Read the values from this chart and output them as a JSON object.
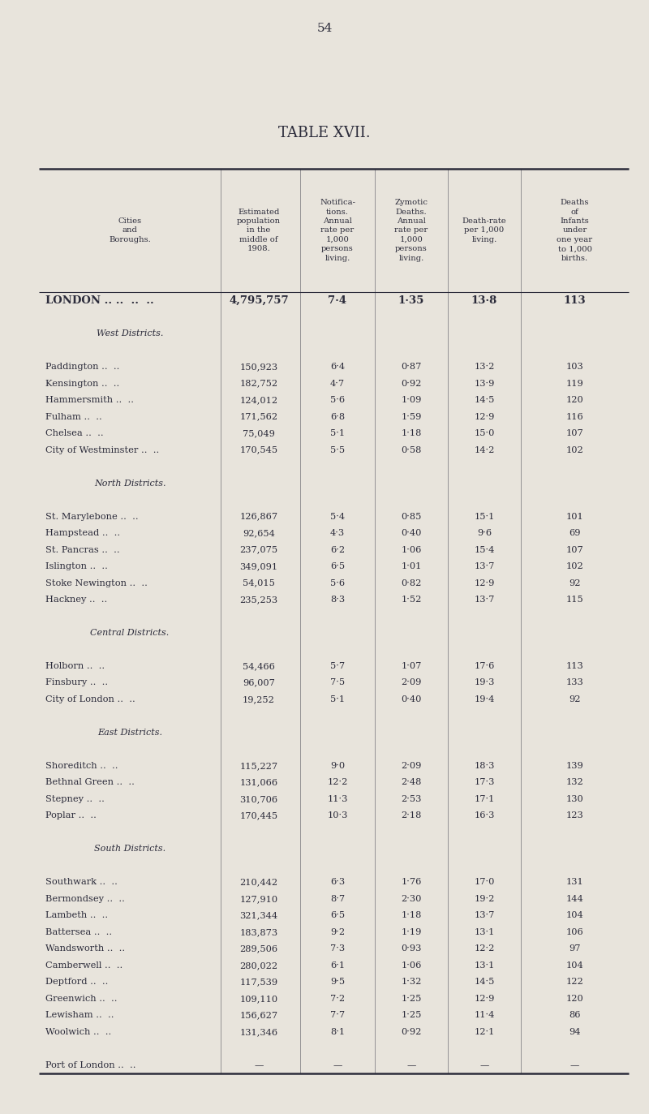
{
  "page_number": "54",
  "title": "TABLE XVII.",
  "bg_color": "#e8e4dc",
  "text_color": "#2b2b3a",
  "rows": [
    {
      "name": "LONDON ..",
      "pop": "4,795,757",
      "notif": "7·4",
      "zymotic": "1·35",
      "death": "13·8",
      "infant": "113",
      "bold": true,
      "section": null,
      "empty": false
    },
    {
      "name": "",
      "pop": "",
      "notif": "",
      "zymotic": "",
      "death": "",
      "infant": "",
      "bold": false,
      "section": null,
      "empty": true
    },
    {
      "name": "West Districts.",
      "pop": "",
      "notif": "",
      "zymotic": "",
      "death": "",
      "infant": "",
      "bold": false,
      "section": "West Districts.",
      "empty": false
    },
    {
      "name": "",
      "pop": "",
      "notif": "",
      "zymotic": "",
      "death": "",
      "infant": "",
      "bold": false,
      "section": null,
      "empty": true
    },
    {
      "name": "Paddington",
      "pop": "150,923",
      "notif": "6·4",
      "zymotic": "0·87",
      "death": "13·2",
      "infant": "103",
      "bold": false,
      "section": null,
      "empty": false
    },
    {
      "name": "Kensington",
      "pop": "182,752",
      "notif": "4·7",
      "zymotic": "0·92",
      "death": "13·9",
      "infant": "119",
      "bold": false,
      "section": null,
      "empty": false
    },
    {
      "name": "Hammersmith",
      "pop": "124,012",
      "notif": "5·6",
      "zymotic": "1·09",
      "death": "14·5",
      "infant": "120",
      "bold": false,
      "section": null,
      "empty": false
    },
    {
      "name": "Fulham",
      "pop": "171,562",
      "notif": "6·8",
      "zymotic": "1·59",
      "death": "12·9",
      "infant": "116",
      "bold": false,
      "section": null,
      "empty": false
    },
    {
      "name": "Chelsea",
      "pop": "75,049",
      "notif": "5·1",
      "zymotic": "1·18",
      "death": "15·0",
      "infant": "107",
      "bold": false,
      "section": null,
      "empty": false
    },
    {
      "name": "City of Westminster",
      "pop": "170,545",
      "notif": "5·5",
      "zymotic": "0·58",
      "death": "14·2",
      "infant": "102",
      "bold": false,
      "section": null,
      "empty": false
    },
    {
      "name": "",
      "pop": "",
      "notif": "",
      "zymotic": "",
      "death": "",
      "infant": "",
      "bold": false,
      "section": null,
      "empty": true
    },
    {
      "name": "North Districts.",
      "pop": "",
      "notif": "",
      "zymotic": "",
      "death": "",
      "infant": "",
      "bold": false,
      "section": "North Districts.",
      "empty": false
    },
    {
      "name": "",
      "pop": "",
      "notif": "",
      "zymotic": "",
      "death": "",
      "infant": "",
      "bold": false,
      "section": null,
      "empty": true
    },
    {
      "name": "St. Marylebone",
      "pop": "126,867",
      "notif": "5·4",
      "zymotic": "0·85",
      "death": "15·1",
      "infant": "101",
      "bold": false,
      "section": null,
      "empty": false
    },
    {
      "name": "Hampstead",
      "pop": "92,654",
      "notif": "4·3",
      "zymotic": "0·40",
      "death": "9·6",
      "infant": "69",
      "bold": false,
      "section": null,
      "empty": false
    },
    {
      "name": "St. Pancras",
      "pop": "237,075",
      "notif": "6·2",
      "zymotic": "1·06",
      "death": "15·4",
      "infant": "107",
      "bold": false,
      "section": null,
      "empty": false
    },
    {
      "name": "Islington",
      "pop": "349,091",
      "notif": "6·5",
      "zymotic": "1·01",
      "death": "13·7",
      "infant": "102",
      "bold": false,
      "section": null,
      "empty": false
    },
    {
      "name": "Stoke Newington ..",
      "pop": "54,015",
      "notif": "5·6",
      "zymotic": "0·82",
      "death": "12·9",
      "infant": "92",
      "bold": false,
      "section": null,
      "empty": false
    },
    {
      "name": "Hackney",
      "pop": "235,253",
      "notif": "8·3",
      "zymotic": "1·52",
      "death": "13·7",
      "infant": "115",
      "bold": false,
      "section": null,
      "empty": false
    },
    {
      "name": "",
      "pop": "",
      "notif": "",
      "zymotic": "",
      "death": "",
      "infant": "",
      "bold": false,
      "section": null,
      "empty": true
    },
    {
      "name": "Central Districts.",
      "pop": "",
      "notif": "",
      "zymotic": "",
      "death": "",
      "infant": "",
      "bold": false,
      "section": "Central Districts.",
      "empty": false
    },
    {
      "name": "",
      "pop": "",
      "notif": "",
      "zymotic": "",
      "death": "",
      "infant": "",
      "bold": false,
      "section": null,
      "empty": true
    },
    {
      "name": "Holborn",
      "pop": "54,466",
      "notif": "5·7",
      "zymotic": "1·07",
      "death": "17·6",
      "infant": "113",
      "bold": false,
      "section": null,
      "empty": false
    },
    {
      "name": "Finsbury",
      "pop": "96,007",
      "notif": "7·5",
      "zymotic": "2·09",
      "death": "19·3",
      "infant": "133",
      "bold": false,
      "section": null,
      "empty": false
    },
    {
      "name": "City of London",
      "pop": "19,252",
      "notif": "5·1",
      "zymotic": "0·40",
      "death": "19·4",
      "infant": "92",
      "bold": false,
      "section": null,
      "empty": false
    },
    {
      "name": "",
      "pop": "",
      "notif": "",
      "zymotic": "",
      "death": "",
      "infant": "",
      "bold": false,
      "section": null,
      "empty": true
    },
    {
      "name": "East Districts.",
      "pop": "",
      "notif": "",
      "zymotic": "",
      "death": "",
      "infant": "",
      "bold": false,
      "section": "East Districts.",
      "empty": false
    },
    {
      "name": "",
      "pop": "",
      "notif": "",
      "zymotic": "",
      "death": "",
      "infant": "",
      "bold": false,
      "section": null,
      "empty": true
    },
    {
      "name": "Shoreditch",
      "pop": "115,227",
      "notif": "9·0",
      "zymotic": "2·09",
      "death": "18·3",
      "infant": "139",
      "bold": false,
      "section": null,
      "empty": false
    },
    {
      "name": "Bethnal Green",
      "pop": "131,066",
      "notif": "12·2",
      "zymotic": "2·48",
      "death": "17·3",
      "infant": "132",
      "bold": false,
      "section": null,
      "empty": false
    },
    {
      "name": "Stepney",
      "pop": "310,706",
      "notif": "11·3",
      "zymotic": "2·53",
      "death": "17·1",
      "infant": "130",
      "bold": false,
      "section": null,
      "empty": false
    },
    {
      "name": "Poplar",
      "pop": "170,445",
      "notif": "10·3",
      "zymotic": "2·18",
      "death": "16·3",
      "infant": "123",
      "bold": false,
      "section": null,
      "empty": false
    },
    {
      "name": "",
      "pop": "",
      "notif": "",
      "zymotic": "",
      "death": "",
      "infant": "",
      "bold": false,
      "section": null,
      "empty": true
    },
    {
      "name": "South Districts.",
      "pop": "",
      "notif": "",
      "zymotic": "",
      "death": "",
      "infant": "",
      "bold": false,
      "section": "South Districts.",
      "empty": false
    },
    {
      "name": "",
      "pop": "",
      "notif": "",
      "zymotic": "",
      "death": "",
      "infant": "",
      "bold": false,
      "section": null,
      "empty": true
    },
    {
      "name": "Southwark",
      "pop": "210,442",
      "notif": "6·3",
      "zymotic": "1·76",
      "death": "17·0",
      "infant": "131",
      "bold": false,
      "section": null,
      "empty": false
    },
    {
      "name": "Bermondsey",
      "pop": "127,910",
      "notif": "8·7",
      "zymotic": "2·30",
      "death": "19·2",
      "infant": "144",
      "bold": false,
      "section": null,
      "empty": false
    },
    {
      "name": "Lambeth",
      "pop": "321,344",
      "notif": "6·5",
      "zymotic": "1·18",
      "death": "13·7",
      "infant": "104",
      "bold": false,
      "section": null,
      "empty": false
    },
    {
      "name": "Battersea",
      "pop": "183,873",
      "notif": "9·2",
      "zymotic": "1·19",
      "death": "13·1",
      "infant": "106",
      "bold": false,
      "section": null,
      "empty": false
    },
    {
      "name": "Wandsworth",
      "pop": "289,506",
      "notif": "7·3",
      "zymotic": "0·93",
      "death": "12·2",
      "infant": "97",
      "bold": false,
      "section": null,
      "empty": false
    },
    {
      "name": "Camberwell",
      "pop": "280,022",
      "notif": "6·1",
      "zymotic": "1·06",
      "death": "13·1",
      "infant": "104",
      "bold": false,
      "section": null,
      "empty": false
    },
    {
      "name": "Deptford",
      "pop": "117,539",
      "notif": "9·5",
      "zymotic": "1·32",
      "death": "14·5",
      "infant": "122",
      "bold": false,
      "section": null,
      "empty": false
    },
    {
      "name": "Greenwich",
      "pop": "109,110",
      "notif": "7·2",
      "zymotic": "1·25",
      "death": "12·9",
      "infant": "120",
      "bold": false,
      "section": null,
      "empty": false
    },
    {
      "name": "Lewisham",
      "pop": "156,627",
      "notif": "7·7",
      "zymotic": "1·25",
      "death": "11·4",
      "infant": "86",
      "bold": false,
      "section": null,
      "empty": false
    },
    {
      "name": "Woolwich",
      "pop": "131,346",
      "notif": "8·1",
      "zymotic": "0·92",
      "death": "12·1",
      "infant": "94",
      "bold": false,
      "section": null,
      "empty": false
    },
    {
      "name": "",
      "pop": "",
      "notif": "",
      "zymotic": "",
      "death": "",
      "infant": "",
      "bold": false,
      "section": null,
      "empty": true
    },
    {
      "name": "Port of London",
      "pop": "—",
      "notif": "—",
      "zymotic": "—",
      "death": "—",
      "infant": "—",
      "bold": false,
      "section": null,
      "empty": false
    }
  ],
  "col_header_1": "Cities\nand\nBoroughs.",
  "col_header_2": "Estimated\npopulation\nin the\nmiddle of\n1908.",
  "col_header_3": "Notifica-\ntions.\nAnnual\nrate per\n1,000\npersons\nliving.",
  "col_header_4": "Zymotic\nDeaths.\nAnnual\nrate per\n1,000\npersons\nliving.",
  "col_header_5": "Death-rate\nper 1,000\nliving.",
  "col_header_6": "Deaths\nof\nInfants\nunder\none year\nto 1,000\nbirths."
}
